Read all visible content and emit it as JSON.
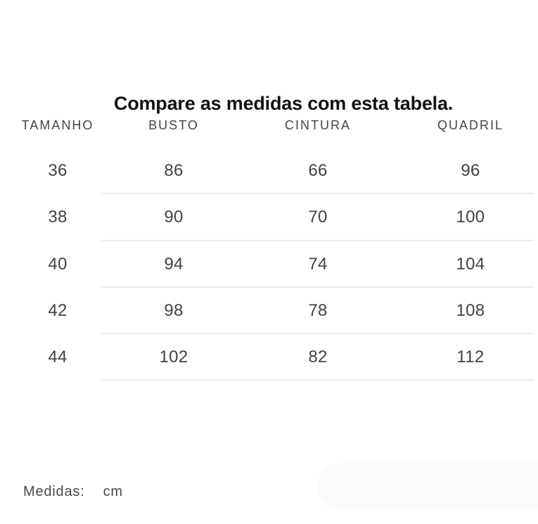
{
  "page": {
    "title": "Compare as medidas com esta tabela.",
    "background_color": "#ffffff"
  },
  "size_table": {
    "columns": [
      "TAMANHO",
      "BUSTO",
      "CINTURA",
      "QUADRIL"
    ],
    "rows": [
      [
        "36",
        "86",
        "66",
        "96"
      ],
      [
        "38",
        "90",
        "70",
        "100"
      ],
      [
        "40",
        "94",
        "74",
        "104"
      ],
      [
        "42",
        "98",
        "78",
        "108"
      ],
      [
        "44",
        "102",
        "82",
        "112"
      ]
    ]
  },
  "chart_data": {
    "type": "table",
    "title": "Compare as medidas com esta tabela.",
    "columns": [
      "TAMANHO",
      "BUSTO",
      "CINTURA",
      "QUADRIL"
    ],
    "rows": [
      [
        36,
        86,
        66,
        96
      ],
      [
        38,
        90,
        70,
        100
      ],
      [
        40,
        94,
        74,
        104
      ],
      [
        42,
        98,
        78,
        108
      ],
      [
        44,
        102,
        82,
        112
      ]
    ],
    "unit": "cm"
  },
  "footer": {
    "label": "Medidas:",
    "unit": "cm"
  },
  "colors": {
    "title_text": "#121212",
    "table_text": "#3f4347",
    "header_text": "#41454a",
    "divider": "#ededed",
    "corner_pill": "#fbfbfb"
  }
}
